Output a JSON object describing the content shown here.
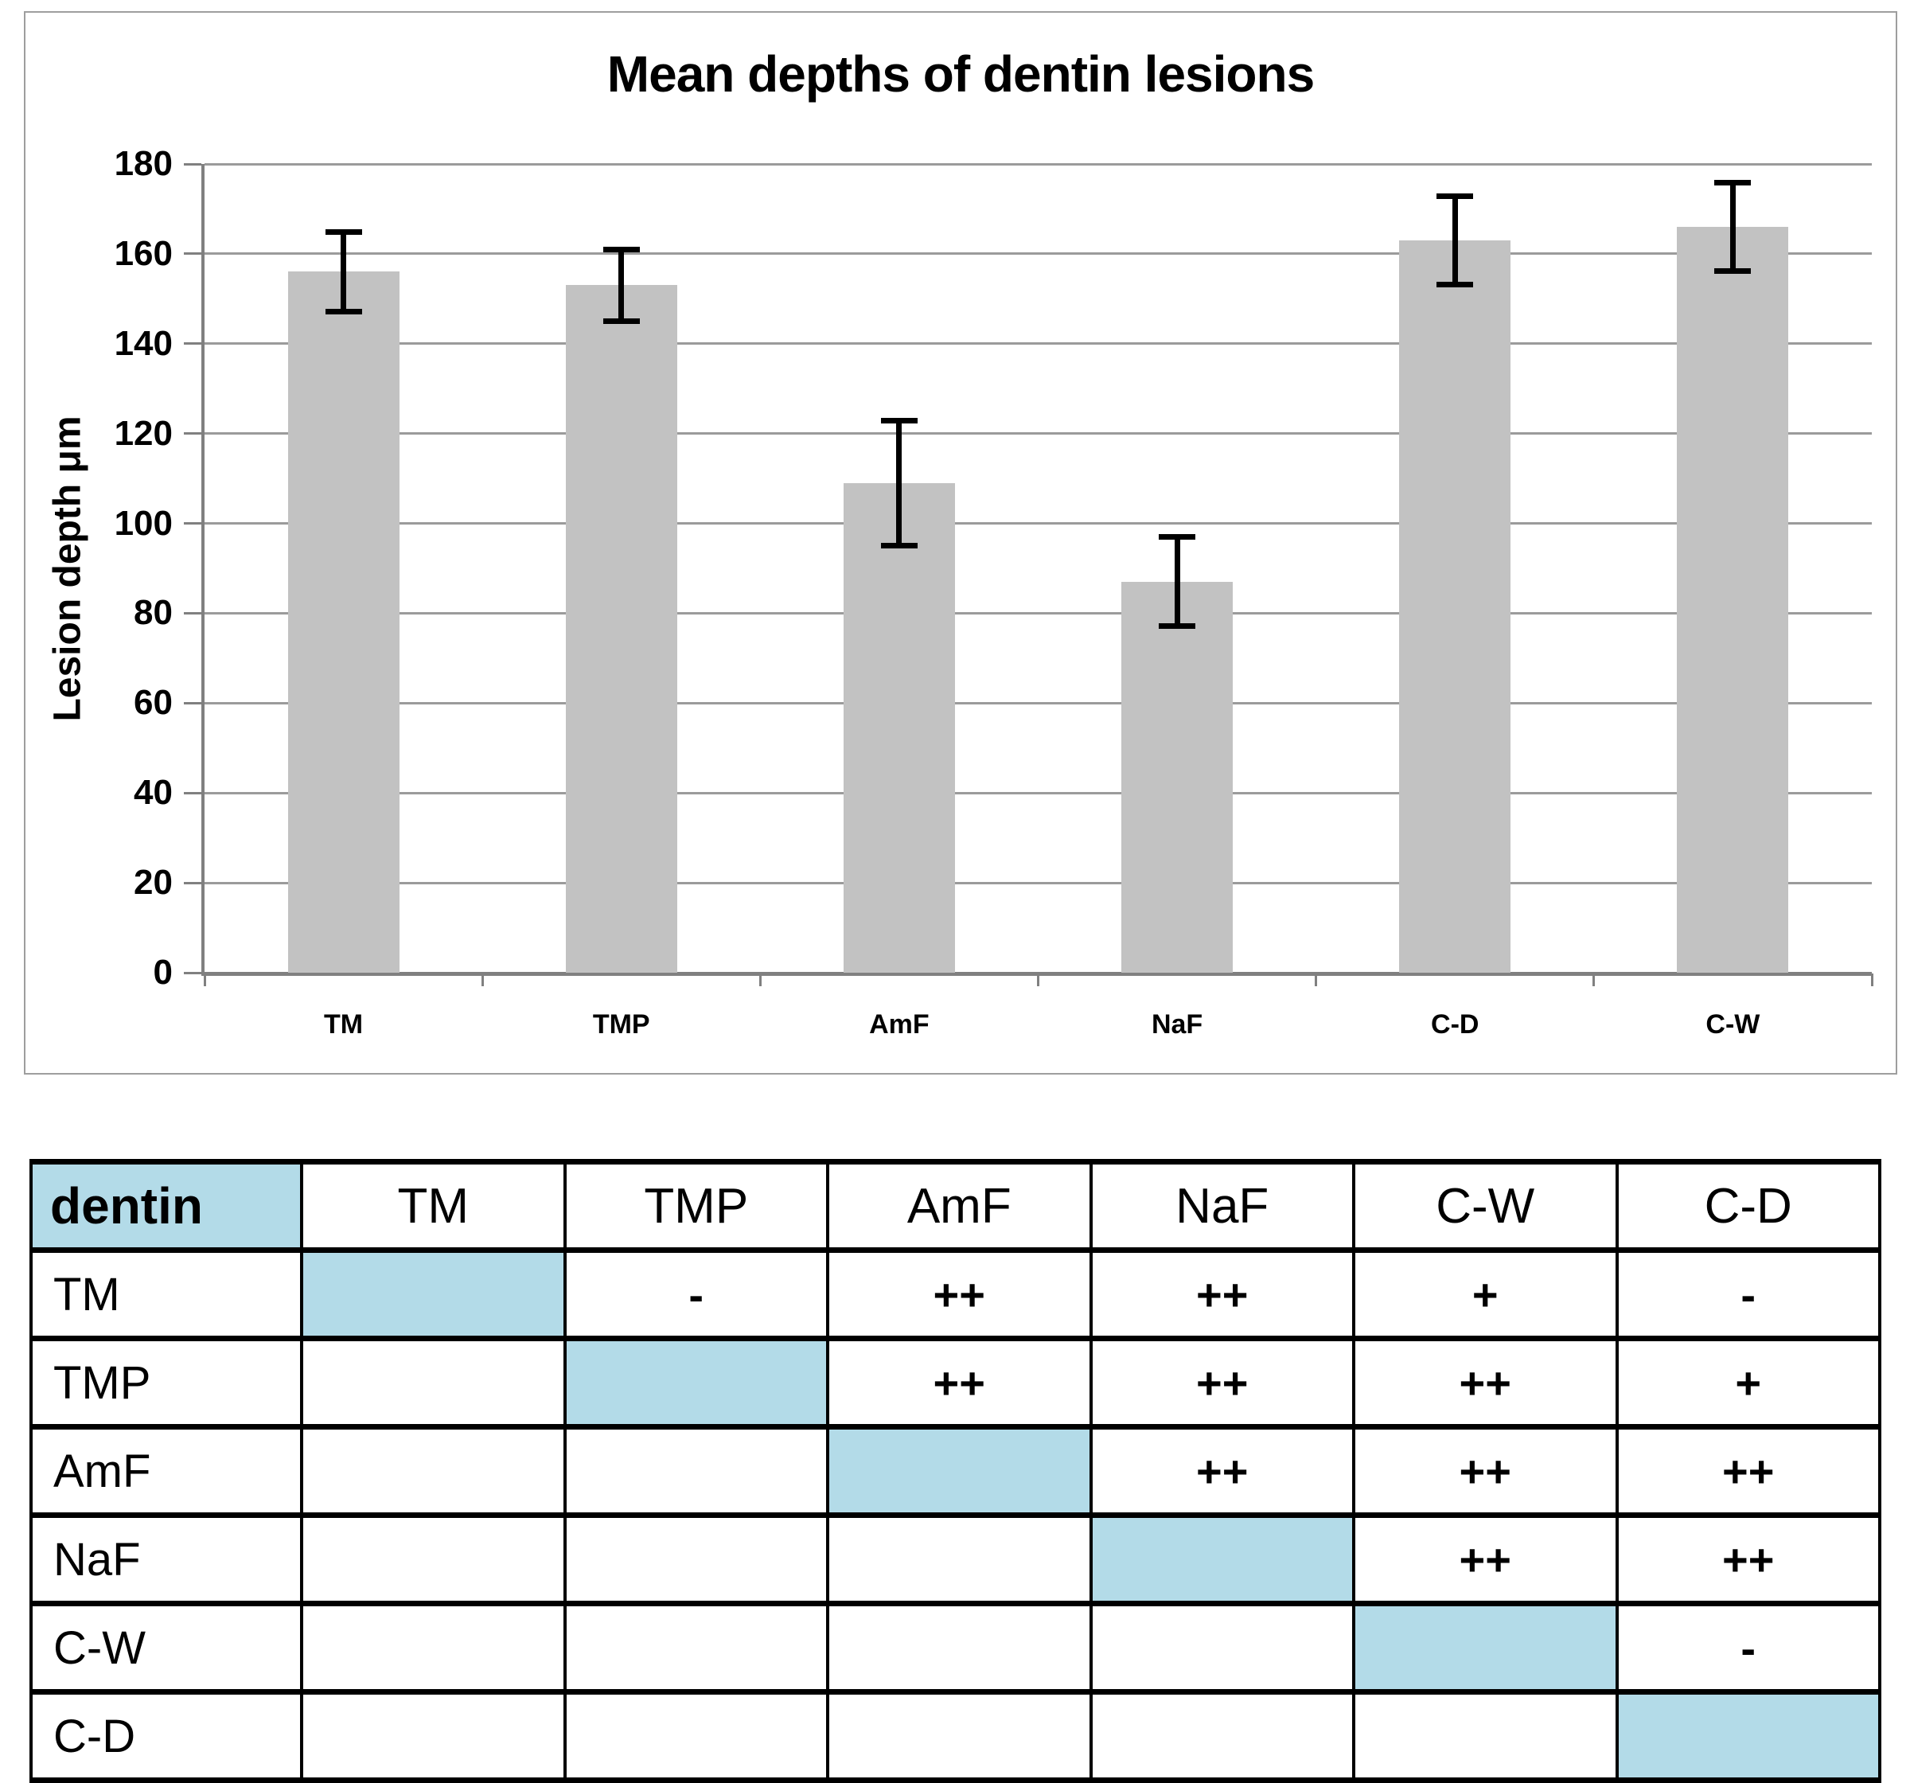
{
  "chart_data": {
    "type": "bar",
    "title": "Mean depths of dentin lesions",
    "xlabel": "",
    "ylabel": "Lesion depth μm",
    "categories": [
      "TM",
      "TMP",
      "AmF",
      "NaF",
      "C-D",
      "C-W"
    ],
    "values": [
      156,
      153,
      109,
      87,
      163,
      166
    ],
    "errors": [
      9,
      8,
      14,
      10,
      10,
      10
    ],
    "ylim": [
      0,
      180
    ],
    "yticks": [
      0,
      20,
      40,
      60,
      80,
      100,
      120,
      140,
      160,
      180
    ],
    "grid": true,
    "legend": "none",
    "bar_color": "#c2c2c2",
    "error_color": "#000000",
    "gridline_color": "#9b9b9b"
  },
  "table": {
    "title_cell": "dentin",
    "header": [
      "TM",
      "TMP",
      "AmF",
      "NaF",
      "C-W",
      "C-D"
    ],
    "rows": [
      {
        "label": "TM",
        "diag": 0,
        "cells": [
          "",
          "-",
          "++",
          "++",
          "+",
          "-"
        ]
      },
      {
        "label": "TMP",
        "diag": 1,
        "cells": [
          "",
          "",
          "++",
          "++",
          "++",
          "+"
        ]
      },
      {
        "label": "AmF",
        "diag": 2,
        "cells": [
          "",
          "",
          "",
          "++",
          "++",
          "++"
        ]
      },
      {
        "label": "NaF",
        "diag": 3,
        "cells": [
          "",
          "",
          "",
          "",
          "++",
          "++"
        ]
      },
      {
        "label": "C-W",
        "diag": 4,
        "cells": [
          "",
          "",
          "",
          "",
          "",
          "-"
        ]
      },
      {
        "label": "C-D",
        "diag": 5,
        "cells": [
          "",
          "",
          "",
          "",
          "",
          ""
        ]
      }
    ],
    "diagonal_color": "#b3dbe8"
  }
}
